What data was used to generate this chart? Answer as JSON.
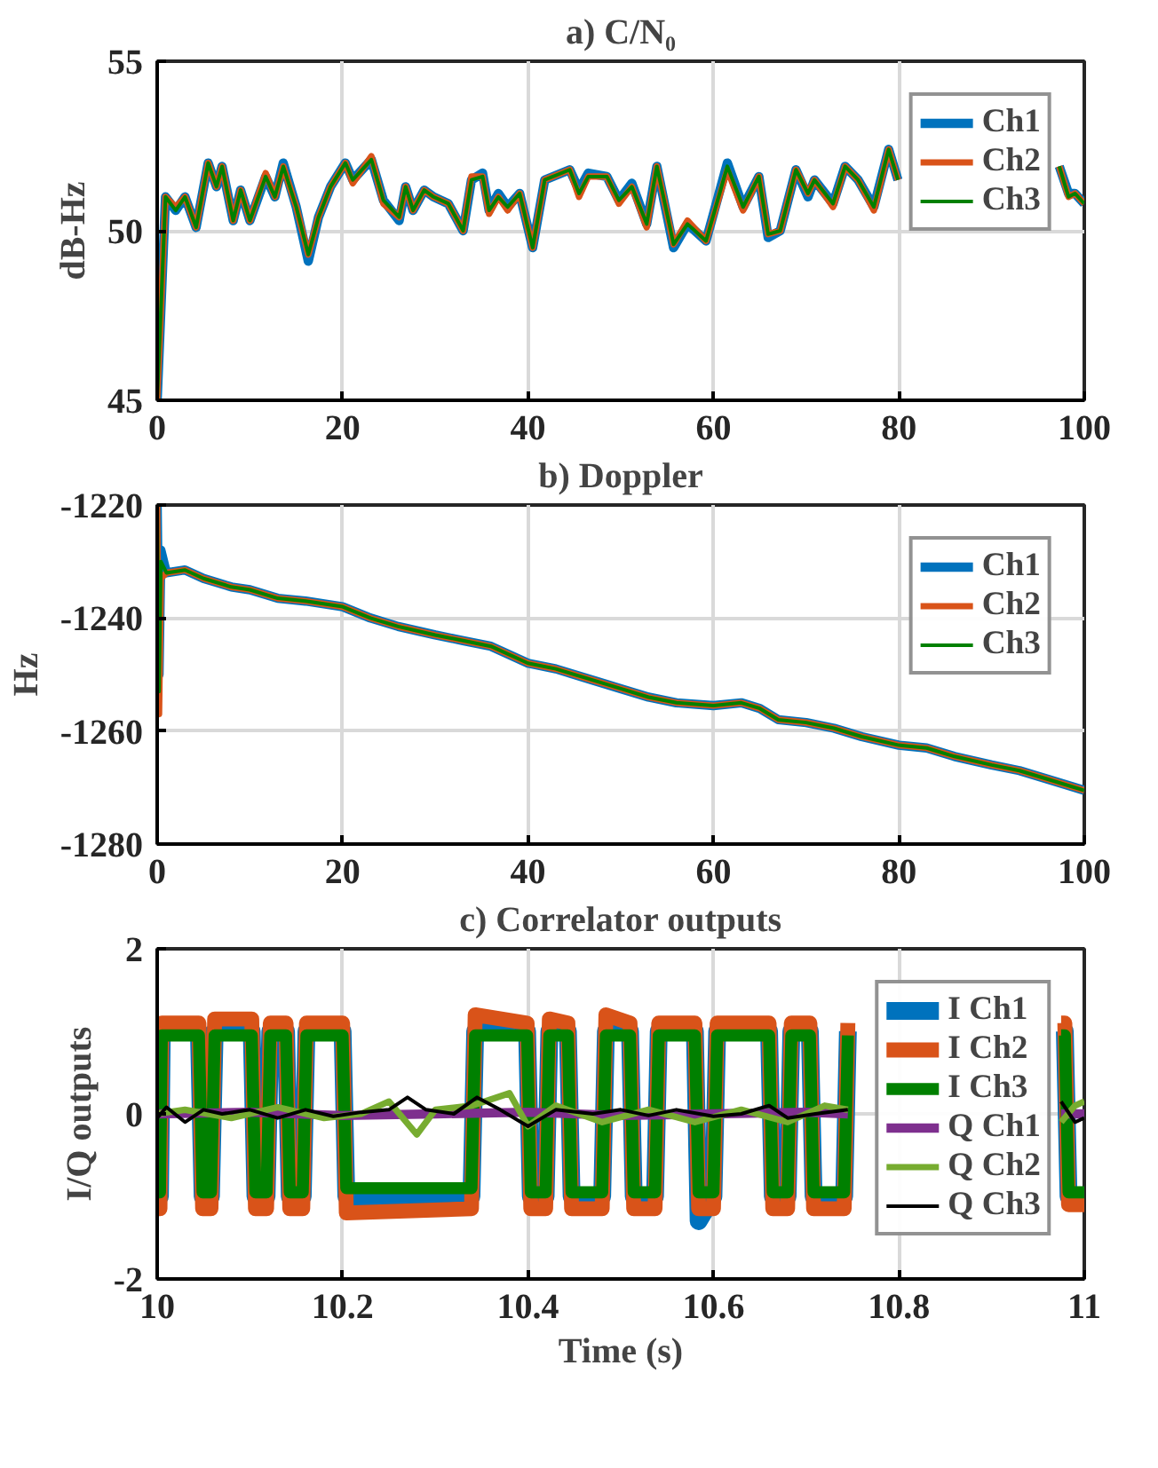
{
  "chart_data": [
    {
      "type": "line",
      "title": "a) C/N₀",
      "ylabel": "dB-Hz",
      "xlim": [
        0,
        100
      ],
      "ylim": [
        45,
        55
      ],
      "xticks": [
        0,
        20,
        40,
        60,
        80,
        100
      ],
      "yticks": [
        45,
        50,
        55
      ],
      "grid": true,
      "legend": "top right",
      "x": [
        0,
        0.9,
        2,
        3,
        4.2,
        5.5,
        6.4,
        7,
        8.2,
        9,
        10,
        11.7,
        12.7,
        13.6,
        15,
        16.3,
        17.4,
        18.7,
        20.3,
        21.1,
        23.1,
        24.4,
        26.1,
        26.8,
        27.6,
        28.8,
        29.8,
        31.4,
        33,
        33.9,
        35.1,
        35.8,
        36.8,
        37.8,
        39.1,
        40.5,
        41.8,
        44.5,
        45.5,
        46.5,
        48.5,
        49.8,
        51.2,
        52.8,
        53.9,
        55.7,
        57.2,
        59.2,
        61.5,
        63.2,
        64.9,
        65.9,
        67.2,
        68.9,
        70.2,
        70.9,
        72.9,
        74.2,
        75.6,
        77.3,
        78.9,
        79.9,
        88,
        97.3,
        98.3,
        99,
        100
      ],
      "series": [
        {
          "name": "Ch1",
          "color": "#0072bd",
          "values": [
            45.0,
            51.0,
            50.6,
            51.0,
            50.1,
            52.0,
            51.3,
            51.9,
            50.3,
            51.2,
            50.3,
            51.6,
            51.0,
            52.0,
            50.7,
            49.1,
            50.4,
            51.3,
            52.0,
            51.5,
            52.1,
            50.9,
            50.3,
            51.3,
            50.6,
            51.2,
            51.0,
            50.8,
            50.0,
            51.5,
            51.7,
            50.6,
            51.1,
            50.7,
            51.1,
            49.5,
            51.5,
            51.8,
            51.2,
            51.7,
            51.6,
            50.9,
            51.4,
            50.2,
            51.9,
            49.5,
            50.2,
            49.7,
            52.0,
            50.7,
            51.6,
            49.8,
            50.0,
            51.8,
            51.0,
            51.5,
            50.8,
            51.9,
            51.5,
            50.7,
            52.4,
            51.5,
            null,
            51.9,
            51.1,
            51.1,
            50.8
          ]
        },
        {
          "name": "Ch2",
          "color": "#d95319",
          "values": [
            45.0,
            51.0,
            50.7,
            51.0,
            50.1,
            52.0,
            51.3,
            51.9,
            50.3,
            51.2,
            50.3,
            51.7,
            51.0,
            51.9,
            50.7,
            49.3,
            50.4,
            51.3,
            52.0,
            51.4,
            52.2,
            50.8,
            50.4,
            51.3,
            50.6,
            51.2,
            51.0,
            50.8,
            50.0,
            51.6,
            51.6,
            50.5,
            51.0,
            50.6,
            51.1,
            49.5,
            51.5,
            51.8,
            51.0,
            51.6,
            51.6,
            50.8,
            51.3,
            50.1,
            51.9,
            49.6,
            50.3,
            49.7,
            51.8,
            50.6,
            51.6,
            49.9,
            50.0,
            51.8,
            51.1,
            51.5,
            50.7,
            51.9,
            51.5,
            50.6,
            52.4,
            51.5,
            null,
            51.9,
            51.0,
            51.1,
            50.8
          ]
        },
        {
          "name": "Ch3",
          "color": "#008000",
          "values": [
            45.0,
            51.0,
            50.6,
            51.0,
            50.1,
            52.0,
            51.3,
            51.9,
            50.3,
            51.2,
            50.3,
            51.6,
            51.0,
            51.9,
            50.7,
            49.3,
            50.4,
            51.3,
            52.0,
            51.5,
            52.1,
            50.9,
            50.4,
            51.3,
            50.6,
            51.2,
            51.0,
            50.8,
            50.0,
            51.5,
            51.6,
            50.6,
            51.0,
            50.7,
            51.1,
            49.5,
            51.5,
            51.8,
            51.1,
            51.6,
            51.6,
            50.9,
            51.3,
            50.2,
            51.9,
            49.6,
            50.2,
            49.7,
            51.9,
            50.7,
            51.6,
            49.9,
            50.0,
            51.8,
            51.1,
            51.5,
            50.8,
            51.9,
            51.5,
            50.7,
            52.4,
            51.5,
            null,
            51.9,
            51.0,
            51.1,
            50.8
          ]
        }
      ]
    },
    {
      "type": "line",
      "title": "b) Doppler",
      "ylabel": "Hz",
      "xlim": [
        0,
        100
      ],
      "ylim": [
        -1280,
        -1220
      ],
      "xticks": [
        0,
        20,
        40,
        60,
        80,
        100
      ],
      "yticks": [
        -1280,
        -1260,
        -1240,
        -1220
      ],
      "grid": true,
      "legend": "top right",
      "x": [
        0,
        0.2,
        0.4,
        1,
        3,
        5,
        8,
        10,
        13,
        16,
        20,
        23,
        26,
        30,
        33,
        36,
        40,
        43,
        46,
        50,
        53,
        56,
        60,
        63,
        65,
        67,
        70,
        73,
        76,
        80,
        83,
        86,
        90,
        93,
        96,
        100
      ],
      "series": [
        {
          "name": "Ch1",
          "color": "#0072bd",
          "values": [
            -1220,
            -1250,
            -1228,
            -1232,
            -1231.5,
            -1233,
            -1234.5,
            -1235,
            -1236.5,
            -1237,
            -1238,
            -1240,
            -1241.5,
            -1243,
            -1244,
            -1245,
            -1248,
            -1249,
            -1250.5,
            -1252.5,
            -1254,
            -1255,
            -1255.5,
            -1255,
            -1256,
            -1258,
            -1258.5,
            -1259.5,
            -1261,
            -1262.5,
            -1263,
            -1264.5,
            -1266,
            -1267,
            -1268.5,
            -1270.5
          ]
        },
        {
          "name": "Ch2",
          "color": "#d95319",
          "values": [
            -1220,
            -1257,
            -1233,
            -1232,
            -1231.5,
            -1233,
            -1234.5,
            -1235,
            -1236.5,
            -1237,
            -1238,
            -1240,
            -1241.5,
            -1243,
            -1244,
            -1245,
            -1248,
            -1249,
            -1250.5,
            -1252.5,
            -1254,
            -1255,
            -1255.5,
            -1255,
            -1256,
            -1258,
            -1258.5,
            -1259.5,
            -1261,
            -1262.5,
            -1263,
            -1264.5,
            -1266,
            -1267,
            -1268.5,
            -1270.5
          ]
        },
        {
          "name": "Ch3",
          "color": "#008000",
          "values": [
            -1220,
            -1253,
            -1230,
            -1232,
            -1231.5,
            -1233,
            -1234.5,
            -1235,
            -1236.5,
            -1237,
            -1238,
            -1240,
            -1241.5,
            -1243,
            -1244,
            -1245,
            -1248,
            -1249,
            -1250.5,
            -1252.5,
            -1254,
            -1255,
            -1255.5,
            -1255,
            -1256,
            -1258,
            -1258.5,
            -1259.5,
            -1261,
            -1262.5,
            -1263,
            -1264.5,
            -1266,
            -1267,
            -1268.5,
            -1270.5
          ]
        }
      ]
    },
    {
      "type": "line",
      "title": "c) Correlator outputs",
      "xlabel": "Time (s)",
      "ylabel": "I/Q outputs",
      "xlim": [
        10,
        11
      ],
      "ylim": [
        -2,
        2
      ],
      "xticks": [
        10,
        10.2,
        10.4,
        10.6,
        10.8,
        11
      ],
      "yticks": [
        -2,
        0,
        2
      ],
      "grid": true,
      "legend": "top right",
      "x": [
        10.0,
        10.003,
        10.005,
        10.045,
        10.049,
        10.058,
        10.062,
        10.102,
        10.106,
        10.118,
        10.122,
        10.139,
        10.143,
        10.157,
        10.161,
        10.2,
        10.204,
        10.339,
        10.343,
        10.399,
        10.403,
        10.419,
        10.423,
        10.443,
        10.447,
        10.48,
        10.484,
        10.51,
        10.514,
        10.537,
        10.541,
        10.58,
        10.584,
        10.6,
        10.604,
        10.66,
        10.664,
        10.68,
        10.684,
        10.704,
        10.708,
        10.741,
        10.745,
        10.86,
        10.975,
        10.979,
        10.983,
        11.0
      ],
      "series": [
        {
          "name": "I Ch1",
          "color": "#0072bd",
          "values": [
            -1.0,
            -1.0,
            1.0,
            1.0,
            -1.0,
            -1.0,
            1.0,
            1.0,
            -1.0,
            -1.0,
            1.0,
            1.0,
            -1.0,
            -1.0,
            1.0,
            1.0,
            -1.0,
            -1.0,
            1.0,
            1.0,
            -1.0,
            -1.0,
            1.0,
            1.0,
            -1.0,
            -1.0,
            1.0,
            1.0,
            -1.0,
            -1.0,
            1.0,
            1.0,
            -1.3,
            -1.0,
            1.0,
            1.0,
            -1.0,
            -1.0,
            1.0,
            1.0,
            -1.0,
            -1.0,
            1.0,
            null,
            1.0,
            1.0,
            -1.0,
            -1.0
          ]
        },
        {
          "name": "I Ch2",
          "color": "#d95319",
          "values": [
            -1.15,
            -1.15,
            1.1,
            1.1,
            -1.15,
            -1.15,
            1.15,
            1.15,
            -1.15,
            -1.15,
            1.1,
            1.1,
            -1.15,
            -1.15,
            1.1,
            1.1,
            -1.2,
            -1.15,
            1.2,
            1.1,
            -1.15,
            -1.15,
            1.15,
            1.1,
            -1.15,
            -1.15,
            1.2,
            1.1,
            -1.15,
            -1.15,
            1.1,
            1.1,
            -1.15,
            -1.15,
            1.1,
            1.1,
            -1.15,
            -1.15,
            1.1,
            1.1,
            -1.15,
            -1.15,
            1.1,
            null,
            1.1,
            1.1,
            -1.1,
            -1.1
          ]
        },
        {
          "name": "I Ch3",
          "color": "#008000",
          "values": [
            -0.95,
            -0.95,
            0.95,
            0.95,
            -0.95,
            -0.95,
            0.95,
            0.95,
            -0.95,
            -0.95,
            0.95,
            0.95,
            -0.95,
            -0.95,
            0.95,
            0.95,
            -0.9,
            -0.9,
            0.95,
            0.95,
            -0.95,
            -0.95,
            0.95,
            0.95,
            -0.95,
            -0.95,
            0.95,
            0.95,
            -0.95,
            -0.95,
            0.95,
            0.95,
            -0.95,
            -0.95,
            0.95,
            0.95,
            -0.95,
            -0.95,
            0.95,
            0.95,
            -0.95,
            -0.95,
            0.95,
            null,
            0.95,
            0.95,
            -0.95,
            -0.95
          ]
        },
        {
          "name": "Q Ch1",
          "color": "#7e2f8e",
          "x": [
            10.0,
            10.1,
            10.2,
            10.3,
            10.4,
            10.5,
            10.6,
            10.7,
            10.745,
            10.86,
            10.975,
            11.0
          ],
          "values": [
            0.0,
            0.02,
            -0.02,
            0.0,
            0.02,
            -0.02,
            0.0,
            0.02,
            0.0,
            null,
            0.0,
            0.0
          ]
        },
        {
          "name": "Q Ch2",
          "color": "#77ac30",
          "x": [
            10.0,
            10.03,
            10.08,
            10.13,
            10.18,
            10.22,
            10.25,
            10.28,
            10.3,
            10.34,
            10.38,
            10.4,
            10.43,
            10.48,
            10.53,
            10.58,
            10.63,
            10.68,
            10.72,
            10.745,
            10.86,
            10.975,
            10.99,
            11.0
          ],
          "values": [
            0.0,
            0.05,
            -0.05,
            0.08,
            -0.05,
            0.0,
            0.15,
            -0.25,
            0.05,
            0.1,
            0.25,
            -0.15,
            0.1,
            -0.1,
            0.05,
            -0.1,
            0.05,
            -0.1,
            0.1,
            0.05,
            null,
            -0.1,
            0.1,
            0.15
          ]
        },
        {
          "name": "Q Ch3",
          "color": "#000000",
          "x": [
            10.0,
            10.01,
            10.03,
            10.05,
            10.07,
            10.1,
            10.13,
            10.16,
            10.19,
            10.22,
            10.25,
            10.27,
            10.29,
            10.32,
            10.345,
            10.37,
            10.4,
            10.43,
            10.47,
            10.5,
            10.53,
            10.56,
            10.6,
            10.63,
            10.66,
            10.68,
            10.71,
            10.745,
            10.86,
            10.975,
            10.99,
            11.0
          ],
          "values": [
            -0.05,
            0.08,
            -0.1,
            0.05,
            0.0,
            0.05,
            -0.05,
            0.05,
            -0.03,
            0.02,
            0.05,
            0.2,
            0.05,
            0.0,
            0.2,
            0.05,
            -0.15,
            0.05,
            0.0,
            0.05,
            -0.02,
            0.05,
            -0.03,
            0.0,
            0.1,
            -0.05,
            0.0,
            0.05,
            null,
            0.15,
            -0.1,
            -0.05
          ]
        }
      ]
    }
  ]
}
